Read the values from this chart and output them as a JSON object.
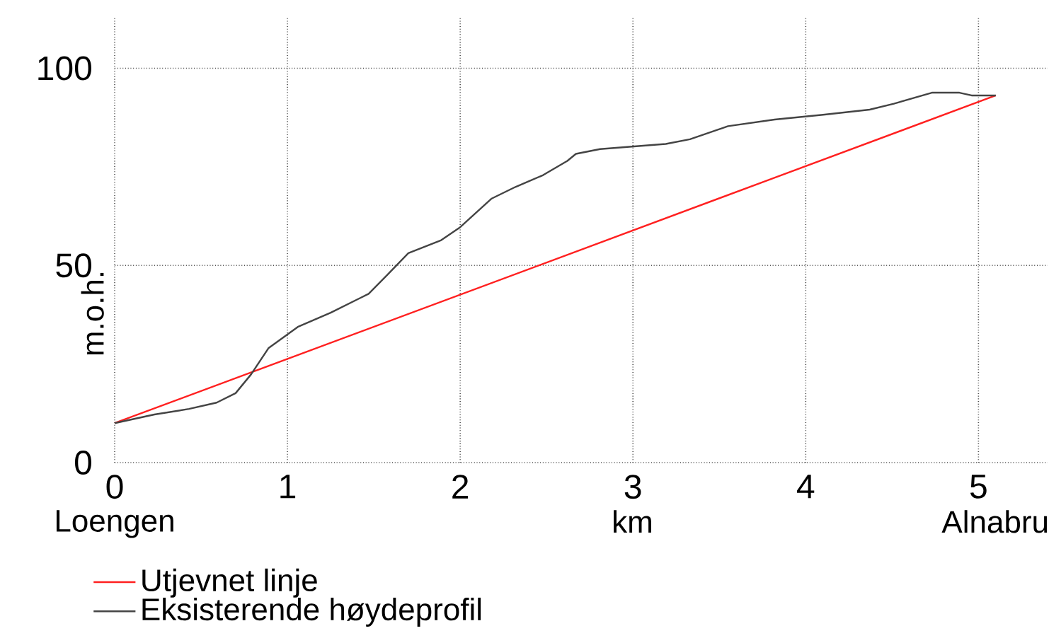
{
  "chart_data": {
    "type": "line",
    "xlabel": "km",
    "ylabel": "m.o.h.",
    "xlim": [
      0,
      5.4
    ],
    "ylim": [
      0,
      113
    ],
    "xticks": [
      0,
      1,
      2,
      3,
      4,
      5
    ],
    "yticks": [
      0,
      50,
      100
    ],
    "grid": true,
    "legend": "bottom",
    "marker": "none",
    "line_style": "solid",
    "annotations": [
      "Loengen",
      "Alnabru"
    ],
    "series": [
      {
        "name": "Utjevnet linje",
        "color": "#ff2020",
        "x": [
          0,
          5.1
        ],
        "values": [
          10,
          93.1
        ]
      },
      {
        "name": "Eksisterende høydeprofil",
        "color": "#444444",
        "x": [
          0,
          0.23,
          0.43,
          0.59,
          0.7,
          0.79,
          0.89,
          1.06,
          1.25,
          1.47,
          1.58,
          1.7,
          1.89,
          2.0,
          2.18,
          2.32,
          2.48,
          2.62,
          2.67,
          2.81,
          3.19,
          3.33,
          3.55,
          3.82,
          4.1,
          4.37,
          4.51,
          4.73,
          4.89,
          4.96,
          5.1
        ],
        "values": [
          10,
          12.2,
          13.6,
          15.2,
          17.6,
          22.4,
          29.0,
          34.4,
          38.0,
          42.8,
          47.7,
          53.1,
          56.4,
          59.7,
          66.9,
          69.9,
          72.9,
          76.5,
          78.3,
          79.5,
          80.8,
          82.0,
          85.3,
          87.0,
          88.2,
          89.5,
          91.0,
          93.8,
          93.8,
          93.1,
          93.1
        ]
      }
    ]
  }
}
